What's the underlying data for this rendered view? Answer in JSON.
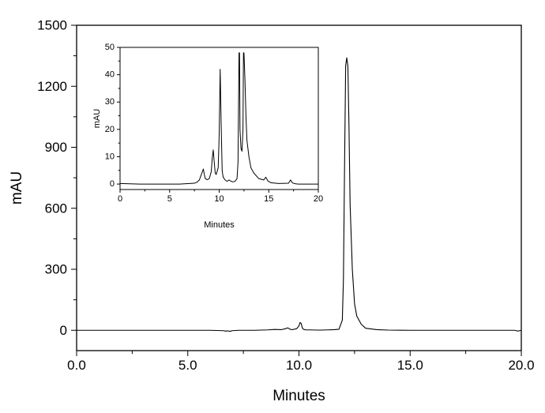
{
  "chart_data": [
    {
      "type": "line",
      "title": "",
      "xlabel": "Minutes",
      "ylabel": "mAU",
      "xlim": [
        0,
        20
      ],
      "ylim": [
        -100,
        1500
      ],
      "xticks": [
        0,
        5,
        10,
        15,
        20
      ],
      "xtick_labels": [
        "0.0",
        "5.0",
        "10.0",
        "15.0",
        "20.0"
      ],
      "yticks": [
        0,
        300,
        600,
        900,
        1200,
        1500
      ],
      "ytick_labels": [
        "0",
        "300",
        "600",
        "900",
        "1200",
        "1500"
      ],
      "grid": false,
      "line_color": "#000000",
      "series": [
        {
          "values_x": [
            0,
            2,
            4,
            6,
            6.6,
            6.7,
            6.8,
            6.9,
            7.0,
            7.3,
            7.5,
            7.8,
            8.0,
            8.3,
            8.6,
            8.9,
            9.2,
            9.4,
            9.5,
            9.6,
            9.7,
            9.9,
            10.0,
            10.05,
            10.1,
            10.15,
            10.2,
            10.3,
            10.5,
            10.8,
            11.0,
            11.3,
            11.6,
            11.8,
            11.95,
            12.0,
            12.05,
            12.1,
            12.15,
            12.2,
            12.25,
            12.3,
            12.4,
            12.5,
            12.6,
            12.8,
            13.0,
            13.5,
            14.0,
            15.0,
            16.0,
            17.0,
            18.0,
            19.0,
            19.7,
            19.8,
            19.9,
            20.0
          ],
          "values_y": [
            0,
            0,
            0,
            0,
            -2,
            -4,
            -3,
            -5,
            -2,
            0,
            0,
            0,
            0,
            1,
            2,
            4,
            3,
            8,
            12,
            5,
            3,
            8,
            22,
            38,
            34,
            12,
            5,
            2,
            2,
            1,
            1,
            2,
            3,
            5,
            50,
            250,
            800,
            1300,
            1340,
            1300,
            1000,
            620,
            300,
            130,
            70,
            30,
            10,
            3,
            1,
            0,
            0,
            0,
            0,
            0,
            0,
            -3,
            -3,
            0
          ]
        }
      ]
    },
    {
      "type": "line",
      "title": "",
      "xlabel": "Minutes",
      "ylabel": "mAU",
      "xlim": [
        0,
        20
      ],
      "ylim": [
        -2,
        50
      ],
      "xticks": [
        0,
        5,
        10,
        15,
        20
      ],
      "xtick_labels": [
        "0",
        "5",
        "10",
        "15",
        "20"
      ],
      "yticks": [
        0,
        10,
        20,
        30,
        40,
        50
      ],
      "ytick_labels": [
        "0",
        "10",
        "20",
        "30",
        "40",
        "50"
      ],
      "grid": false,
      "line_color": "#000000",
      "series": [
        {
          "values_x": [
            0,
            2,
            4,
            6,
            7.0,
            7.5,
            7.8,
            8.0,
            8.1,
            8.3,
            8.4,
            8.5,
            8.6,
            8.8,
            9.0,
            9.2,
            9.3,
            9.4,
            9.5,
            9.6,
            9.7,
            9.9,
            10.0,
            10.1,
            10.2,
            10.3,
            10.4,
            10.6,
            10.8,
            11.0,
            11.2,
            11.4,
            11.6,
            11.8,
            11.9,
            12.0,
            12.05,
            12.1,
            12.2,
            12.3,
            12.4,
            12.45,
            12.5,
            12.6,
            12.7,
            12.8,
            13.0,
            13.2,
            13.5,
            14.0,
            14.5,
            14.7,
            14.9,
            15.2,
            16.0,
            17.0,
            17.2,
            17.4,
            17.7,
            18.0,
            19.0,
            20.0
          ],
          "values_y": [
            0.2,
            0,
            0,
            0,
            0.2,
            0.3,
            0.8,
            1.5,
            2.5,
            4.5,
            5.5,
            3.5,
            2.0,
            1.6,
            2.0,
            4.5,
            9.5,
            12.5,
            8.0,
            4.0,
            3.5,
            6.0,
            18.0,
            42.0,
            22.0,
            5.0,
            2.5,
            1.5,
            1.0,
            1.5,
            1.0,
            0.8,
            1.0,
            2.0,
            8.0,
            48.0,
            48.0,
            20.0,
            13.0,
            12.0,
            20.0,
            48.0,
            48.0,
            38.0,
            25.0,
            16.0,
            10.0,
            6.0,
            4.0,
            2.0,
            1.5,
            2.5,
            1.2,
            0.5,
            0.2,
            0.3,
            1.5,
            0.4,
            0.1,
            0,
            0,
            0
          ]
        }
      ]
    }
  ]
}
